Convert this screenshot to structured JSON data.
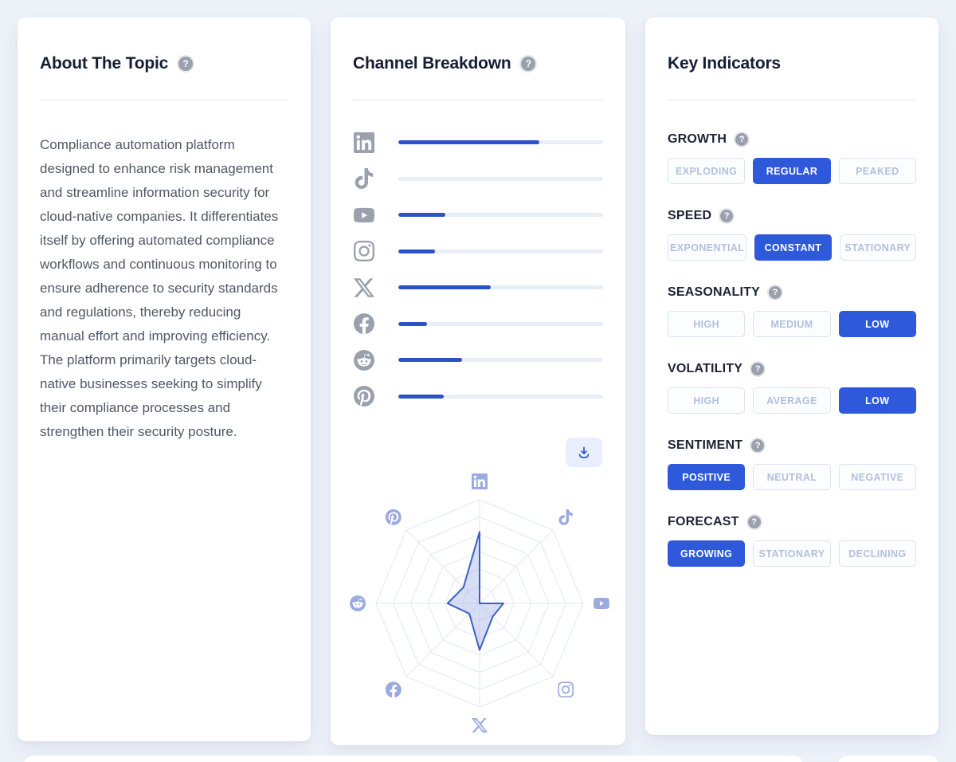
{
  "colors": {
    "accent_blue": "#2e59da",
    "bar_blue": "#2b52c6",
    "page_bg": "#edf1f8",
    "inactive_text": "#b3bfde"
  },
  "about_card": {
    "title": "About The Topic",
    "help_icon": "question-icon",
    "description": "Compliance automation platform designed to enhance risk management and streamline information security for cloud-native companies. It differentiates itself by offering automated compliance workflows and continuous monitoring to ensure adherence to security standards and regulations, thereby reducing manual effort and improving efficiency. The platform primarily targets cloud-native businesses seeking to simplify their compliance processes and strengthen their security posture."
  },
  "channel_card": {
    "title": "Channel Breakdown",
    "help_icon": "question-icon",
    "download_icon": "download-icon",
    "channels": [
      {
        "name": "linkedin",
        "icon": "linkedin-icon",
        "value": 69
      },
      {
        "name": "tiktok",
        "icon": "tiktok-icon",
        "value": 0
      },
      {
        "name": "youtube",
        "icon": "youtube-icon",
        "value": 23
      },
      {
        "name": "instagram",
        "icon": "instagram-icon",
        "value": 18
      },
      {
        "name": "x",
        "icon": "x-icon",
        "value": 45
      },
      {
        "name": "facebook",
        "icon": "facebook-icon",
        "value": 14
      },
      {
        "name": "reddit",
        "icon": "reddit-icon",
        "value": 31
      },
      {
        "name": "pinterest",
        "icon": "pinterest-icon",
        "value": 22
      }
    ]
  },
  "chart_data": {
    "type": "radar",
    "categories": [
      "LinkedIn",
      "TikTok",
      "YouTube",
      "Instagram",
      "X",
      "Facebook",
      "Reddit",
      "Pinterest"
    ],
    "values": [
      69,
      0,
      23,
      18,
      45,
      14,
      31,
      22
    ],
    "max": 100,
    "rings": 6,
    "grid": true,
    "legend": false
  },
  "indicators_card": {
    "title": "Key Indicators",
    "groups": [
      {
        "label": "GROWTH",
        "options": [
          "EXPLODING",
          "REGULAR",
          "PEAKED"
        ],
        "selected": "REGULAR"
      },
      {
        "label": "SPEED",
        "options": [
          "EXPONENTIAL",
          "CONSTANT",
          "STATIONARY"
        ],
        "selected": "CONSTANT"
      },
      {
        "label": "SEASONALITY",
        "options": [
          "HIGH",
          "MEDIUM",
          "LOW"
        ],
        "selected": "LOW"
      },
      {
        "label": "VOLATILITY",
        "options": [
          "HIGH",
          "AVERAGE",
          "LOW"
        ],
        "selected": "LOW"
      },
      {
        "label": "SENTIMENT",
        "options": [
          "POSITIVE",
          "NEUTRAL",
          "NEGATIVE"
        ],
        "selected": "POSITIVE"
      },
      {
        "label": "FORECAST",
        "options": [
          "GROWING",
          "STATIONARY",
          "DECLINING"
        ],
        "selected": "GROWING"
      }
    ]
  }
}
